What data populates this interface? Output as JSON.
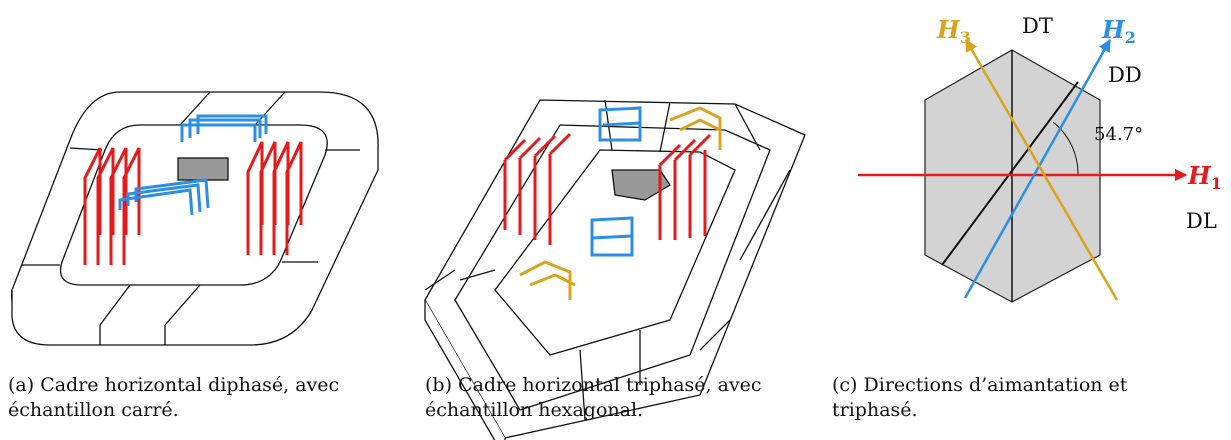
{
  "subfigures": [
    {
      "caption": "(a) Cadre horizontal diphasé, avec échantillon carré."
    },
    {
      "caption": "(b) Cadre horizontal triphasé, avec échantillon hexagonal."
    },
    {
      "caption": "(c) Directions d’aimantation et triphasé.",
      "labels": {
        "DT": "DT",
        "DD": "DD",
        "DL": "DL",
        "angle": "54.7°",
        "H1": {
          "symbol": "H",
          "subscript": "1"
        },
        "H2": {
          "symbol": "H",
          "subscript": "2"
        },
        "H3": {
          "symbol": "H",
          "subscript": "3"
        }
      }
    }
  ]
}
